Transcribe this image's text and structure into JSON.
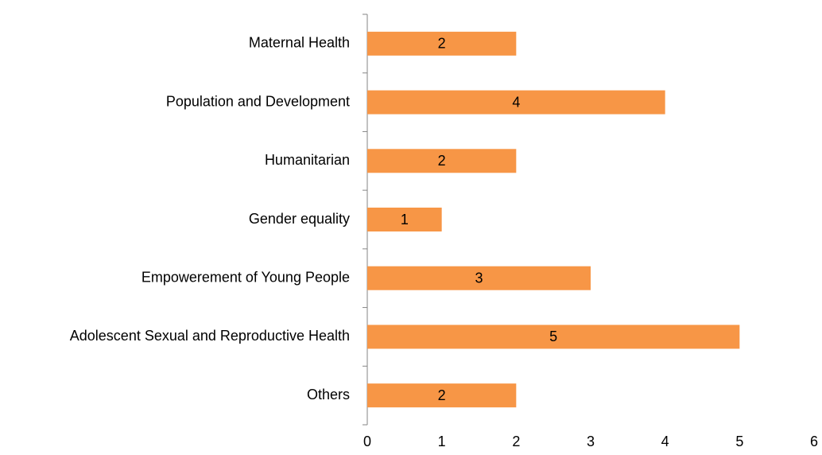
{
  "chart_data": {
    "type": "barh",
    "categories": [
      "Maternal Health",
      "Population and Development",
      "Humanitarian",
      "Gender equality",
      "Empowerement of Young People",
      "Adolescent Sexual and Reproductive Health",
      "Others"
    ],
    "values": [
      2,
      4,
      2,
      1,
      3,
      5,
      2
    ],
    "color": "#f79646",
    "xlim": [
      0,
      6
    ],
    "xticks": [
      0,
      1,
      2,
      3,
      4,
      5,
      6
    ],
    "grid": false
  }
}
